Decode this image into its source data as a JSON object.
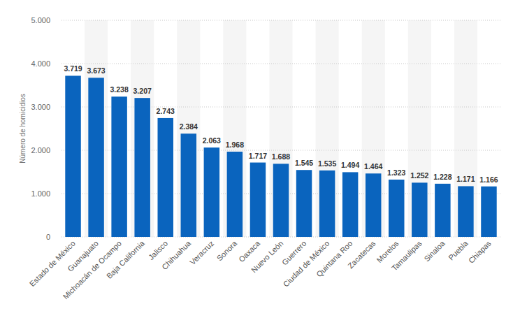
{
  "chart_data": {
    "type": "bar",
    "y_label": "Número de homicidios",
    "categories": [
      "Estado de México",
      "Guanajuato",
      "Michoacán de Ocampo",
      "Baja California",
      "Jalisco",
      "Chihuahua",
      "Veracruz",
      "Sonora",
      "Oaxaca",
      "Nuevo León",
      "Guerrero",
      "Ciudad de México",
      "Quintana Roo",
      "Zacatecas",
      "Morelos",
      "Tamaulipas",
      "Sinaloa",
      "Puebla",
      "Chiapas"
    ],
    "values": [
      3719,
      3673,
      3238,
      3207,
      2743,
      2384,
      2063,
      1968,
      1717,
      1688,
      1545,
      1535,
      1494,
      1464,
      1323,
      1252,
      1228,
      1171,
      1166
    ],
    "value_labels": [
      "3.719",
      "3.673",
      "3.238",
      "3.207",
      "2.743",
      "2.384",
      "2.063",
      "1.968",
      "1.717",
      "1.688",
      "1.545",
      "1.535",
      "1.494",
      "1.464",
      "1.323",
      "1.252",
      "1.228",
      "1.171",
      "1.166"
    ],
    "color": "#0a64be",
    "ylim": [
      0,
      5000
    ],
    "yticks": [
      0,
      {
        "value": 1000,
        "label": "1.000"
      },
      {
        "value": 2000,
        "label": "2.000"
      },
      {
        "value": 3000,
        "label": "3.000"
      },
      {
        "value": 4000,
        "label": "4.000"
      },
      {
        "value": 5000,
        "label": "5.000"
      }
    ],
    "grid": true,
    "data_labels": true
  }
}
